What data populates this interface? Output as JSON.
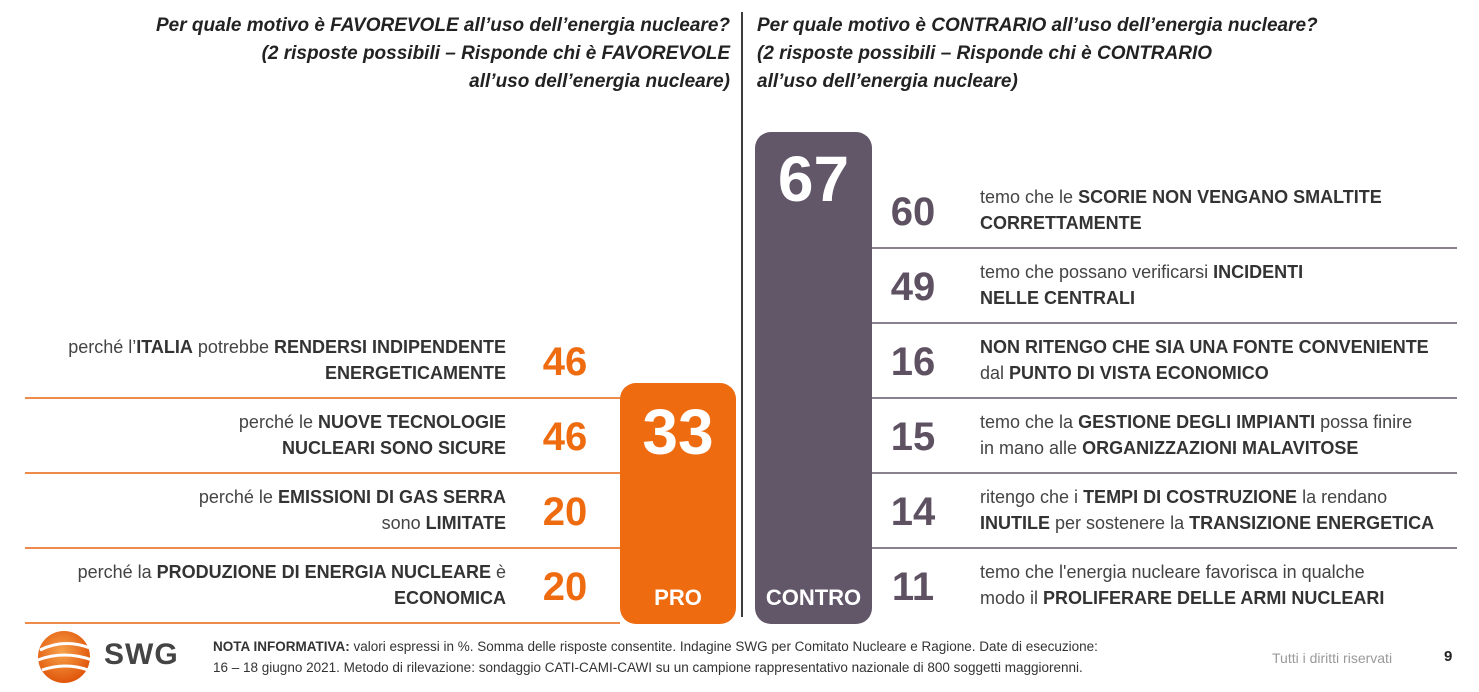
{
  "questions": {
    "pro": [
      "Per quale motivo è FAVOREVOLE all’uso dell’energia nucleare?",
      "(2 risposte possibili – Risponde chi è FAVOREVOLE",
      "all’uso dell’energia nucleare)"
    ],
    "contro": [
      "Per quale motivo è CONTRARIO all’uso dell’energia nucleare?",
      "(2 risposte possibili – Risponde chi è CONTRARIO",
      "all’uso dell’energia nucleare)"
    ]
  },
  "chart_data": [
    {
      "type": "bar",
      "series_name": "PRO",
      "total": 33,
      "color": "#ee6b10",
      "categories": [
        [
          "perché l’",
          {
            "b": "ITALIA"
          },
          " potrebbe ",
          {
            "b": "RENDERSI INDIPENDENTE"
          },
          "\n",
          {
            "b": "ENERGETICAMENTE"
          }
        ],
        [
          "perché le ",
          {
            "b": "NUOVE TECNOLOGIE"
          },
          "\n",
          {
            "b": "NUCLEARI SONO SICURE"
          }
        ],
        [
          "perché le ",
          {
            "b": "EMISSIONI DI GAS SERRA"
          },
          "\nsono ",
          {
            "b": "LIMITATE"
          }
        ],
        [
          "perché la ",
          {
            "b": "PRODUZIONE DI ENERGIA NUCLEARE"
          },
          " è\n",
          {
            "b": "ECONOMICA"
          }
        ]
      ],
      "values": [
        46,
        46,
        20,
        20
      ]
    },
    {
      "type": "bar",
      "series_name": "CONTRO",
      "total": 67,
      "color": "#625669",
      "categories": [
        [
          "temo che le ",
          {
            "b": "SCORIE NON VENGANO SMALTITE"
          },
          "\n",
          {
            "b": "CORRETTAMENTE"
          }
        ],
        [
          "temo che possano verificarsi ",
          {
            "b": "INCIDENTI"
          },
          "\n",
          {
            "b": "NELLE CENTRALI"
          }
        ],
        [
          {
            "b": "NON RITENGO CHE SIA UNA FONTE CONVENIENTE"
          },
          "\ndal ",
          {
            "b": "PUNTO DI VISTA ECONOMICO"
          }
        ],
        [
          "temo che la ",
          {
            "b": "GESTIONE DEGLI IMPIANTI"
          },
          " possa finire\nin mano alle ",
          {
            "b": "ORGANIZZAZIONI MALAVITOSE"
          }
        ],
        [
          "ritengo che i ",
          {
            "b": "TEMPI DI COSTRUZIONE"
          },
          " la rendano\n",
          {
            "b": "INUTILE"
          },
          " per sostenere la ",
          {
            "b": "TRANSIZIONE ENERGETICA"
          }
        ],
        [
          "temo che l'energia nucleare favorisca in qualche\nmodo il ",
          {
            "b": "PROLIFERARE DELLE ARMI NUCLEARI"
          }
        ]
      ],
      "values": [
        60,
        49,
        16,
        15,
        14,
        11
      ]
    }
  ],
  "footer": {
    "logo_text": "SWG",
    "note_label": "NOTA INFORMATIVA:",
    "note_line1": " valori espressi in %. Somma delle risposte consentite. Indagine SWG per Comitato Nucleare e Ragione. Date di esecuzione:",
    "note_line2": "16 – 18 giugno 2021. Metodo di rilevazione: sondaggio CATI-CAMI-CAWI su un campione rappresentativo nazionale di 800 soggetti maggiorenni.",
    "rights": "Tutti i diritti riservati",
    "page_number": "9"
  },
  "colors": {
    "pro": "#ee6b10",
    "contro": "#625669"
  }
}
